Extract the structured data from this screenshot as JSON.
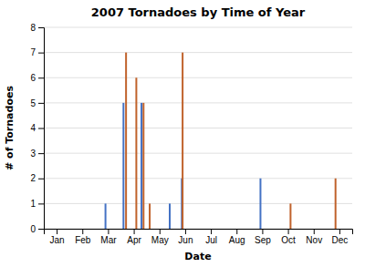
{
  "chart_data": {
    "type": "stem",
    "title": "2007 Tornadoes by Time of Year",
    "x_label": "Date",
    "y_label": "# of Tornadoes",
    "xlim": [
      0.5,
      12.5
    ],
    "xticks": [
      {
        "value": 1,
        "label": "Jan"
      },
      {
        "value": 2,
        "label": "Feb"
      },
      {
        "value": 3,
        "label": "Mar"
      },
      {
        "value": 4,
        "label": "Apr"
      },
      {
        "value": 5,
        "label": "May"
      },
      {
        "value": 6,
        "label": "Jun"
      },
      {
        "value": 7,
        "label": "Jul"
      },
      {
        "value": 8,
        "label": "Aug"
      },
      {
        "value": 9,
        "label": "Sep"
      },
      {
        "value": 10,
        "label": "Oct"
      },
      {
        "value": 11,
        "label": "Nov"
      },
      {
        "value": 12,
        "label": "Dec"
      }
    ],
    "ylim": [
      0,
      8
    ],
    "yticks": [
      0,
      1,
      2,
      3,
      4,
      5,
      6,
      7,
      8
    ],
    "grid": true,
    "series": [
      {
        "color": "#4472C4",
        "x": [
          2.9,
          3.6,
          4.3,
          5.4,
          5.87,
          8.93
        ],
        "values": [
          1,
          5,
          5,
          1,
          2,
          2
        ]
      },
      {
        "color": "#C0622B",
        "x": [
          3.7,
          4.1,
          4.38,
          4.62,
          5.9,
          10.1,
          11.85
        ],
        "values": [
          7,
          6,
          5,
          1,
          7,
          1,
          2
        ]
      }
    ]
  }
}
